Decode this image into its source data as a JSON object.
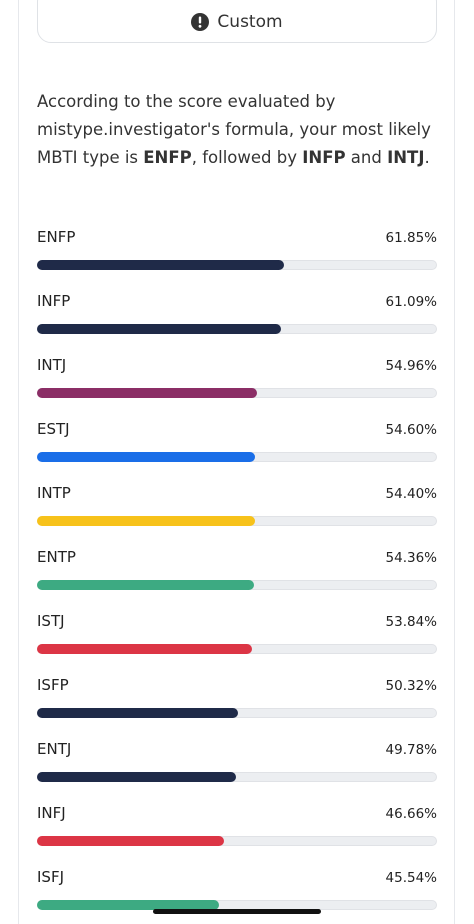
{
  "button": {
    "label": "Custom"
  },
  "description": {
    "segments": [
      {
        "text": "According to the score evaluated by mistype.investigator's formula, your most likely MBTI type is ",
        "bold": false
      },
      {
        "text": "ENFP",
        "bold": true
      },
      {
        "text": ", followed by ",
        "bold": false
      },
      {
        "text": "INFP",
        "bold": true
      },
      {
        "text": " and ",
        "bold": false
      },
      {
        "text": "INTJ",
        "bold": true
      },
      {
        "text": ".",
        "bold": false
      }
    ]
  },
  "chart_data": {
    "type": "bar",
    "orientation": "horizontal",
    "categories": [
      "ENFP",
      "INFP",
      "INTJ",
      "ESTJ",
      "INTP",
      "ENTP",
      "ISTJ",
      "ISFP",
      "ENTJ",
      "INFJ",
      "ISFJ"
    ],
    "values": [
      61.85,
      61.09,
      54.96,
      54.6,
      54.4,
      54.36,
      53.84,
      50.32,
      49.78,
      46.66,
      45.54
    ],
    "value_labels": [
      "61.85%",
      "61.09%",
      "54.96%",
      "54.60%",
      "54.40%",
      "54.36%",
      "53.84%",
      "50.32%",
      "49.78%",
      "46.66%",
      "45.54%"
    ],
    "colors": [
      "#1f2a48",
      "#1f2a48",
      "#8b2e66",
      "#1a6ee8",
      "#f7c21a",
      "#3daa82",
      "#dc3545",
      "#1f2a48",
      "#1f2a48",
      "#dc3545",
      "#3daa82"
    ],
    "xlim": [
      0,
      100
    ]
  }
}
